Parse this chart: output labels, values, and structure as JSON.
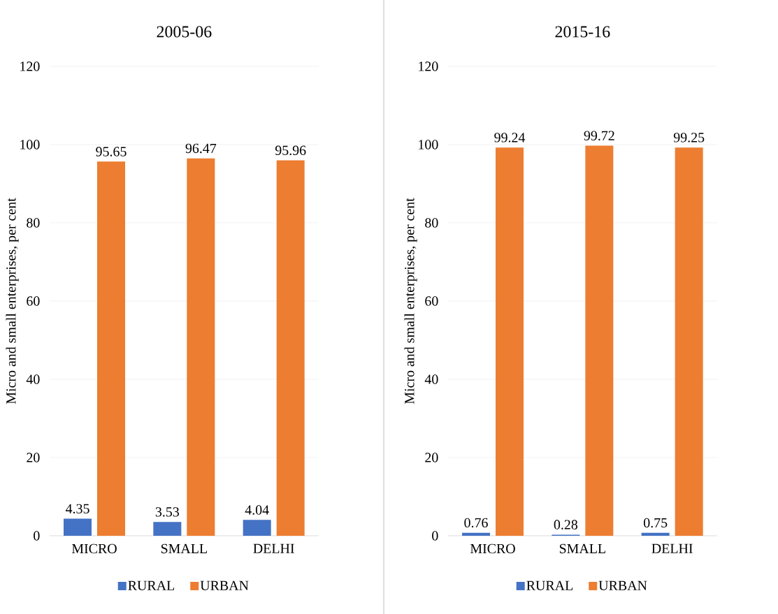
{
  "chart_data": [
    {
      "type": "bar",
      "title": "2005-06",
      "ylabel": "Micro and small enterprises, per cent",
      "categories": [
        "MICRO",
        "SMALL",
        "DELHI"
      ],
      "series": [
        {
          "name": "RURAL",
          "color": "#4472c4",
          "values": [
            4.35,
            3.53,
            4.04
          ]
        },
        {
          "name": "URBAN",
          "color": "#ed7d31",
          "values": [
            95.65,
            96.47,
            95.96
          ]
        }
      ],
      "ylim": [
        0,
        120
      ],
      "yticks": [
        0,
        20,
        40,
        60,
        80,
        100,
        120
      ],
      "grid": "y",
      "legend": "bottom",
      "data_labels": true
    },
    {
      "type": "bar",
      "title": "2015-16",
      "ylabel": "Micro and small enterprises, per cent",
      "categories": [
        "MICRO",
        "SMALL",
        "DELHI"
      ],
      "series": [
        {
          "name": "RURAL",
          "color": "#4472c4",
          "values": [
            0.76,
            0.28,
            0.75
          ]
        },
        {
          "name": "URBAN",
          "color": "#ed7d31",
          "values": [
            99.24,
            99.72,
            99.25
          ]
        }
      ],
      "ylim": [
        0,
        120
      ],
      "yticks": [
        0,
        20,
        40,
        60,
        80,
        100,
        120
      ],
      "grid": "y",
      "legend": "bottom",
      "data_labels": true
    }
  ]
}
